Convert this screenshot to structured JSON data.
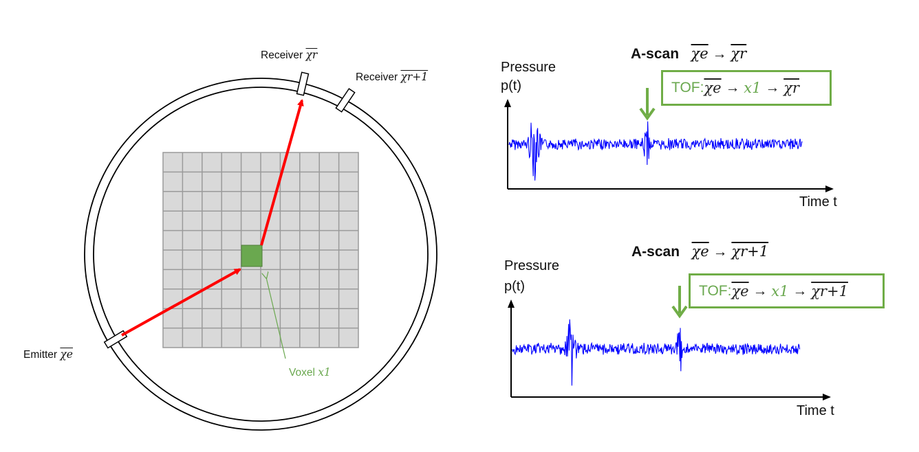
{
  "left_diagram": {
    "receiver_r_label": "Receiver",
    "receiver_r_symbol": "χr",
    "receiver_r1_label": "Receiver",
    "receiver_r1_symbol": "χr+1",
    "emitter_label": "Emitter",
    "emitter_symbol": "χe",
    "voxel_label": "Voxel",
    "voxel_symbol": "x1",
    "grid_rows": 10,
    "grid_cols": 10
  },
  "scan_top": {
    "title": "A-scan",
    "title_from": "χe",
    "title_arrow": "→",
    "title_to": "χr",
    "y_label_1": "Pressure",
    "y_label_2": "p(t)",
    "x_label": "Time t",
    "tof_prefix": "TOF:",
    "tof_from": "χe",
    "tof_arrow": "→",
    "tof_voxel": "x1",
    "tof_to": "χr"
  },
  "scan_bottom": {
    "title": "A-scan",
    "title_from": "χe",
    "title_arrow": "→",
    "title_to": "χr+1",
    "y_label_1": "Pressure",
    "y_label_2": "p(t)",
    "x_label": "Time t",
    "tof_prefix": "TOF:",
    "tof_from": "χe",
    "tof_arrow": "→",
    "tof_voxel": "x1",
    "tof_to": "χr+1"
  },
  "colors": {
    "ray": "#ff0000",
    "voxel": "#6aa84f",
    "grid_fill": "#d9d9d9",
    "signal": "#0000ff",
    "tof": "#70ad47"
  }
}
